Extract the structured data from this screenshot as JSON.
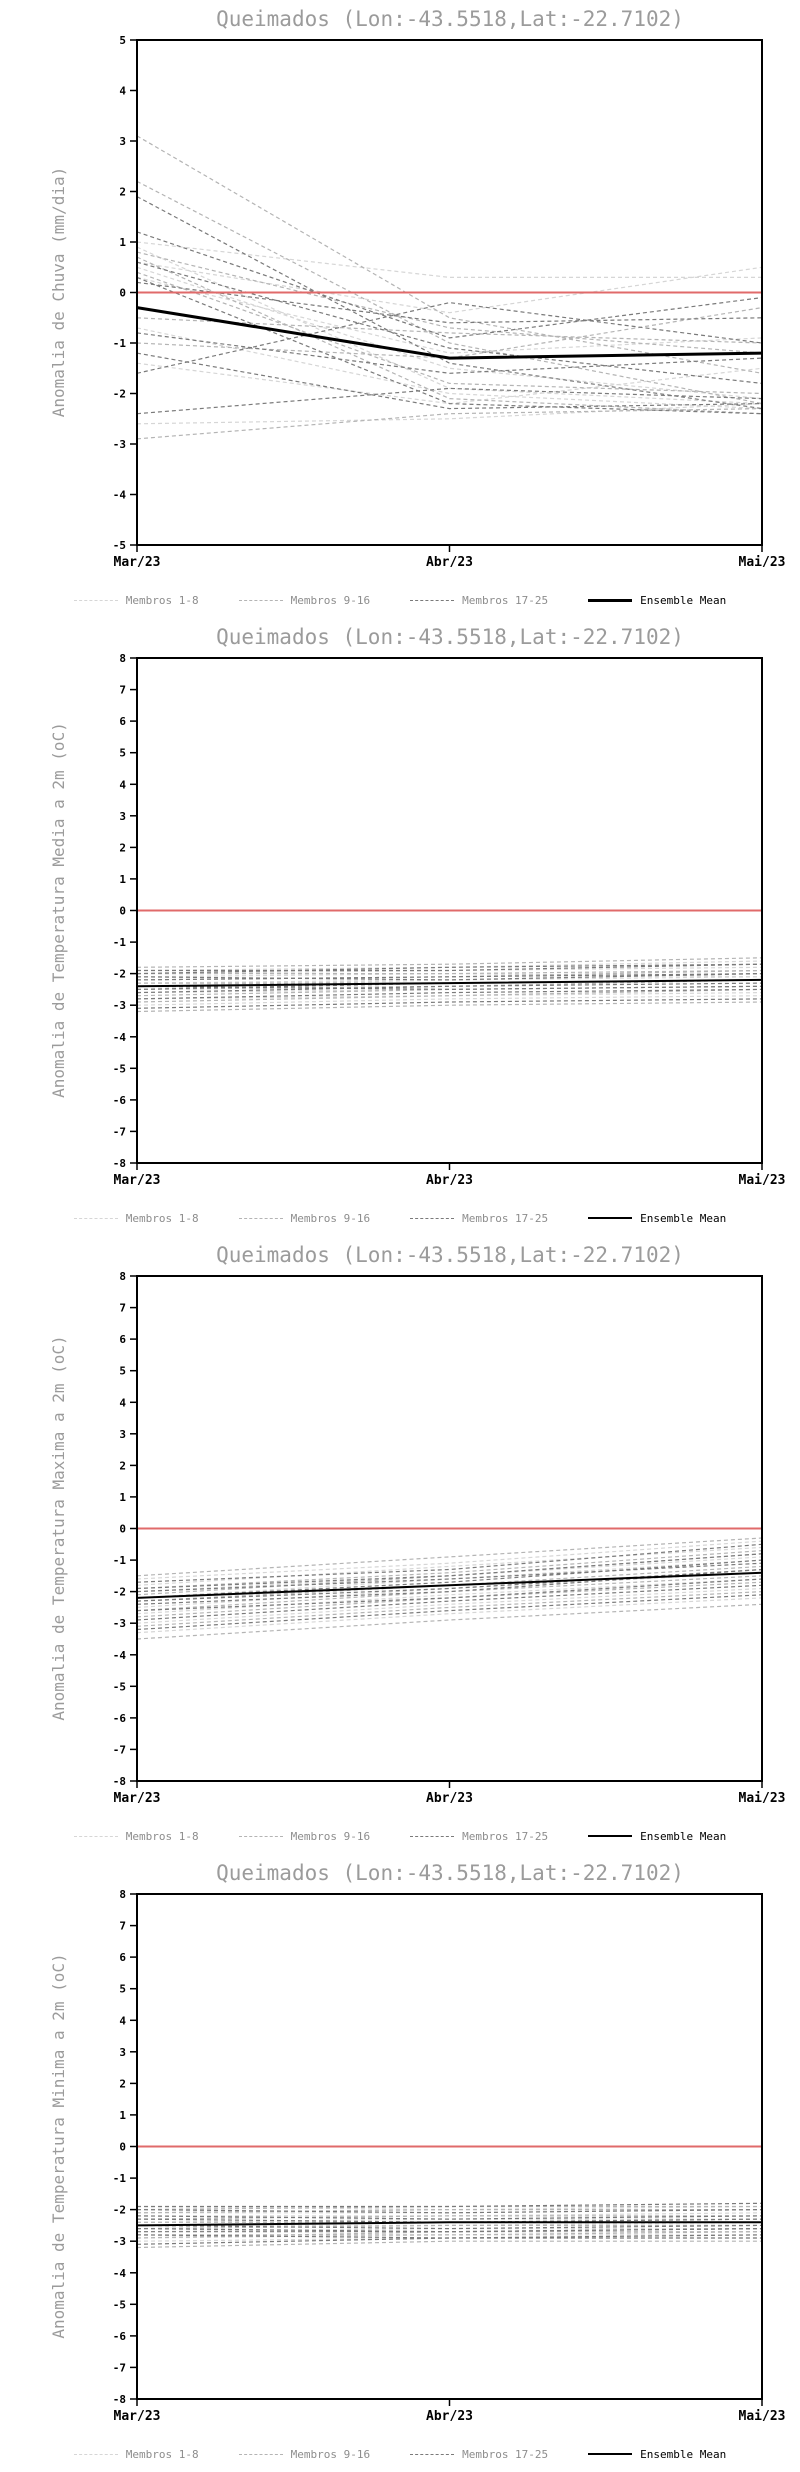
{
  "style": {
    "zero_line_color": "#e06a6a",
    "frame_color": "#000000",
    "title_color": "#9b9b9b",
    "member_dash": "4 3"
  },
  "chart_data": [
    {
      "type": "line",
      "title": "Queimados (Lon:-43.5518,Lat:-22.7102)",
      "ylabel": "Anomalia de Chuva (mm/dia)",
      "x_ticklabels": [
        "Mar/23",
        "Abr/23",
        "Mai/23"
      ],
      "ylim": [
        -5,
        5
      ],
      "ytick_step": 1,
      "zero_line": 0,
      "legend_position": "bottom",
      "groups": [
        {
          "name": "Membros 1-8",
          "color": "#d6d6d6",
          "series": [
            [
              0.9,
              -1.9,
              -2.2
            ],
            [
              0.6,
              -0.4,
              0.5
            ],
            [
              -2.6,
              -2.5,
              -2.2
            ],
            [
              0.3,
              -1.2,
              -0.9
            ],
            [
              -0.7,
              -2.0,
              -2.3
            ],
            [
              1.0,
              0.3,
              0.3
            ],
            [
              -1.4,
              -2.2,
              -1.5
            ],
            [
              0.5,
              -1.5,
              -2.1
            ]
          ]
        },
        {
          "name": "Membros 9-16",
          "color": "#b4b4b4",
          "series": [
            [
              3.1,
              -0.5,
              -1.6
            ],
            [
              2.2,
              -1.0,
              -2.2
            ],
            [
              0.8,
              -0.7,
              -1.2
            ],
            [
              -2.9,
              -2.4,
              -2.3
            ],
            [
              0.4,
              -1.8,
              -2.0
            ],
            [
              -1.0,
              -1.3,
              -0.3
            ],
            [
              0.7,
              -2.1,
              -2.4
            ],
            [
              -0.5,
              -0.8,
              -1.0
            ]
          ]
        },
        {
          "name": "Membros 17-25",
          "color": "#7a7a7a",
          "series": [
            [
              1.9,
              -1.4,
              -2.3
            ],
            [
              0.2,
              -0.6,
              -0.5
            ],
            [
              -1.2,
              -2.3,
              -2.2
            ],
            [
              0.6,
              -1.1,
              -1.8
            ],
            [
              -2.4,
              -1.9,
              -2.1
            ],
            [
              1.2,
              -0.9,
              -0.1
            ],
            [
              -0.8,
              -1.6,
              -1.3
            ],
            [
              0.3,
              -2.2,
              -2.4
            ],
            [
              -1.6,
              -0.2,
              -1.0
            ]
          ]
        }
      ],
      "mean": {
        "name": "Ensemble Mean",
        "color": "#000000",
        "width": 3,
        "values": [
          -0.3,
          -1.3,
          -1.2
        ]
      }
    },
    {
      "type": "line",
      "title": "Queimados (Lon:-43.5518,Lat:-22.7102)",
      "ylabel": "Anomalia de Temperatura Media a 2m (oC)",
      "x_ticklabels": [
        "Mar/23",
        "Abr/23",
        "Mai/23"
      ],
      "ylim": [
        -8,
        8
      ],
      "ytick_step": 1,
      "zero_line": 0,
      "legend_position": "bottom",
      "groups": [
        {
          "name": "Membros 1-8",
          "color": "#d6d6d6",
          "series": [
            [
              -2.0,
              -1.9,
              -1.8
            ],
            [
              -2.3,
              -2.2,
              -2.0
            ],
            [
              -2.6,
              -2.5,
              -2.4
            ],
            [
              -1.9,
              -1.8,
              -1.6
            ],
            [
              -2.8,
              -2.7,
              -2.6
            ],
            [
              -2.1,
              -2.0,
              -2.1
            ],
            [
              -2.4,
              -2.2,
              -2.1
            ],
            [
              -3.0,
              -2.8,
              -2.7
            ]
          ]
        },
        {
          "name": "Membros 9-16",
          "color": "#b4b4b4",
          "series": [
            [
              -1.8,
              -1.7,
              -1.5
            ],
            [
              -2.2,
              -2.1,
              -1.9
            ],
            [
              -2.5,
              -2.4,
              -2.2
            ],
            [
              -2.9,
              -2.7,
              -2.5
            ],
            [
              -2.0,
              -2.0,
              -1.9
            ],
            [
              -2.7,
              -2.5,
              -2.4
            ],
            [
              -2.3,
              -2.3,
              -2.2
            ],
            [
              -3.2,
              -3.0,
              -2.9
            ]
          ]
        },
        {
          "name": "Membros 17-25",
          "color": "#7a7a7a",
          "series": [
            [
              -1.9,
              -1.9,
              -1.7
            ],
            [
              -2.1,
              -2.2,
              -2.0
            ],
            [
              -2.6,
              -2.4,
              -2.3
            ],
            [
              -2.4,
              -2.5,
              -2.4
            ],
            [
              -2.8,
              -2.6,
              -2.5
            ],
            [
              -2.2,
              -2.1,
              -2.0
            ],
            [
              -3.1,
              -2.9,
              -2.8
            ],
            [
              -2.5,
              -2.3,
              -2.2
            ],
            [
              -2.0,
              -1.8,
              -1.7
            ]
          ]
        }
      ],
      "mean": {
        "name": "Ensemble Mean",
        "color": "#000000",
        "width": 2,
        "values": [
          -2.4,
          -2.3,
          -2.2
        ]
      }
    },
    {
      "type": "line",
      "title": "Queimados (Lon:-43.5518,Lat:-22.7102)",
      "ylabel": "Anomalia de Temperatura Maxima a 2m (oC)",
      "x_ticklabels": [
        "Mar/23",
        "Abr/23",
        "Mai/23"
      ],
      "ylim": [
        -8,
        8
      ],
      "ytick_step": 1,
      "zero_line": 0,
      "legend_position": "bottom",
      "groups": [
        {
          "name": "Membros 1-8",
          "color": "#d6d6d6",
          "series": [
            [
              -1.8,
              -1.2,
              -0.6
            ],
            [
              -2.2,
              -1.6,
              -1.0
            ],
            [
              -2.7,
              -2.1,
              -1.6
            ],
            [
              -1.6,
              -1.1,
              -0.4
            ],
            [
              -3.0,
              -2.4,
              -1.9
            ],
            [
              -2.0,
              -1.5,
              -0.9
            ],
            [
              -2.5,
              -1.9,
              -1.4
            ],
            [
              -3.3,
              -2.7,
              -2.2
            ]
          ]
        },
        {
          "name": "Membros 9-16",
          "color": "#b4b4b4",
          "series": [
            [
              -1.5,
              -0.9,
              -0.3
            ],
            [
              -2.1,
              -1.5,
              -0.8
            ],
            [
              -2.6,
              -2.0,
              -1.5
            ],
            [
              -3.1,
              -2.5,
              -2.0
            ],
            [
              -1.9,
              -1.4,
              -0.7
            ],
            [
              -2.8,
              -2.2,
              -1.7
            ],
            [
              -2.3,
              -1.8,
              -1.2
            ],
            [
              -3.5,
              -2.9,
              -2.4
            ]
          ]
        },
        {
          "name": "Membros 17-25",
          "color": "#7a7a7a",
          "series": [
            [
              -1.7,
              -1.3,
              -0.5
            ],
            [
              -2.0,
              -1.6,
              -1.1
            ],
            [
              -2.4,
              -2.0,
              -1.3
            ],
            [
              -2.9,
              -2.3,
              -1.8
            ],
            [
              -2.2,
              -1.7,
              -1.0
            ],
            [
              -3.2,
              -2.6,
              -2.1
            ],
            [
              -2.6,
              -2.2,
              -1.6
            ],
            [
              -1.9,
              -1.5,
              -0.8
            ],
            [
              -2.3,
              -1.9,
              -1.3
            ]
          ]
        }
      ],
      "mean": {
        "name": "Ensemble Mean",
        "color": "#000000",
        "width": 2,
        "values": [
          -2.2,
          -1.8,
          -1.4
        ]
      }
    },
    {
      "type": "line",
      "title": "Queimados (Lon:-43.5518,Lat:-22.7102)",
      "ylabel": "Anomalia de Temperatura Minima a 2m (oC)",
      "x_ticklabels": [
        "Mar/23",
        "Abr/23",
        "Mai/23"
      ],
      "ylim": [
        -8,
        8
      ],
      "ytick_step": 1,
      "zero_line": 0,
      "legend_position": "bottom",
      "groups": [
        {
          "name": "Membros 1-8",
          "color": "#d6d6d6",
          "series": [
            [
              -2.1,
              -2.1,
              -2.0
            ],
            [
              -2.4,
              -2.3,
              -2.3
            ],
            [
              -2.7,
              -2.6,
              -2.6
            ],
            [
              -1.9,
              -2.0,
              -1.9
            ],
            [
              -2.9,
              -2.8,
              -2.8
            ],
            [
              -2.2,
              -2.2,
              -2.1
            ],
            [
              -2.5,
              -2.5,
              -2.4
            ],
            [
              -3.0,
              -2.9,
              -2.9
            ]
          ]
        },
        {
          "name": "Membros 9-16",
          "color": "#b4b4b4",
          "series": [
            [
              -2.0,
              -1.9,
              -1.9
            ],
            [
              -2.3,
              -2.2,
              -2.2
            ],
            [
              -2.6,
              -2.5,
              -2.5
            ],
            [
              -2.8,
              -2.8,
              -2.7
            ],
            [
              -2.1,
              -2.0,
              -2.0
            ],
            [
              -2.9,
              -2.7,
              -2.7
            ],
            [
              -2.4,
              -2.4,
              -2.3
            ],
            [
              -3.2,
              -3.0,
              -3.0
            ]
          ]
        },
        {
          "name": "Membros 17-25",
          "color": "#7a7a7a",
          "series": [
            [
              -2.0,
              -2.1,
              -2.0
            ],
            [
              -2.2,
              -2.3,
              -2.2
            ],
            [
              -2.5,
              -2.6,
              -2.5
            ],
            [
              -2.7,
              -2.7,
              -2.6
            ],
            [
              -2.3,
              -2.4,
              -2.3
            ],
            [
              -3.1,
              -2.9,
              -2.9
            ],
            [
              -2.6,
              -2.7,
              -2.6
            ],
            [
              -1.9,
              -1.9,
              -1.8
            ],
            [
              -2.8,
              -2.9,
              -2.8
            ]
          ]
        }
      ],
      "mean": {
        "name": "Ensemble Mean",
        "color": "#000000",
        "width": 2,
        "values": [
          -2.5,
          -2.4,
          -2.4
        ]
      }
    }
  ]
}
